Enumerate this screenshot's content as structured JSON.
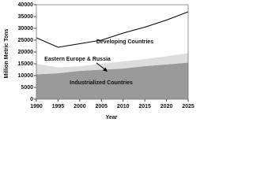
{
  "chart_data": {
    "type": "stacked_area",
    "x": [
      1990,
      1995,
      2000,
      2005,
      2010,
      2015,
      2020,
      2025
    ],
    "series": [
      {
        "name": "Industrialized Countries",
        "color": "#9a9a9a",
        "values": [
          10500,
          11000,
          12000,
          12500,
          13000,
          14000,
          14700,
          15500
        ]
      },
      {
        "name": "Eastern Europe & Russia",
        "color": "#dcdcdc",
        "values": [
          4500,
          2500,
          2000,
          2500,
          3000,
          3000,
          3500,
          4000
        ]
      },
      {
        "name": "Developing Countries",
        "color": "#ffffff",
        "values": [
          11000,
          8500,
          9500,
          10000,
          12000,
          13500,
          15300,
          17500
        ]
      }
    ],
    "xlim": [
      1990,
      2025
    ],
    "xticks": [
      1990,
      1995,
      2000,
      2005,
      2010,
      2015,
      2020,
      2025
    ],
    "ylim": [
      0,
      40000
    ],
    "yticks": [
      0,
      5000,
      10000,
      15000,
      20000,
      25000,
      30000,
      35000,
      40000
    ],
    "x_label": "Year",
    "y_label": "Million Metric Tons"
  }
}
